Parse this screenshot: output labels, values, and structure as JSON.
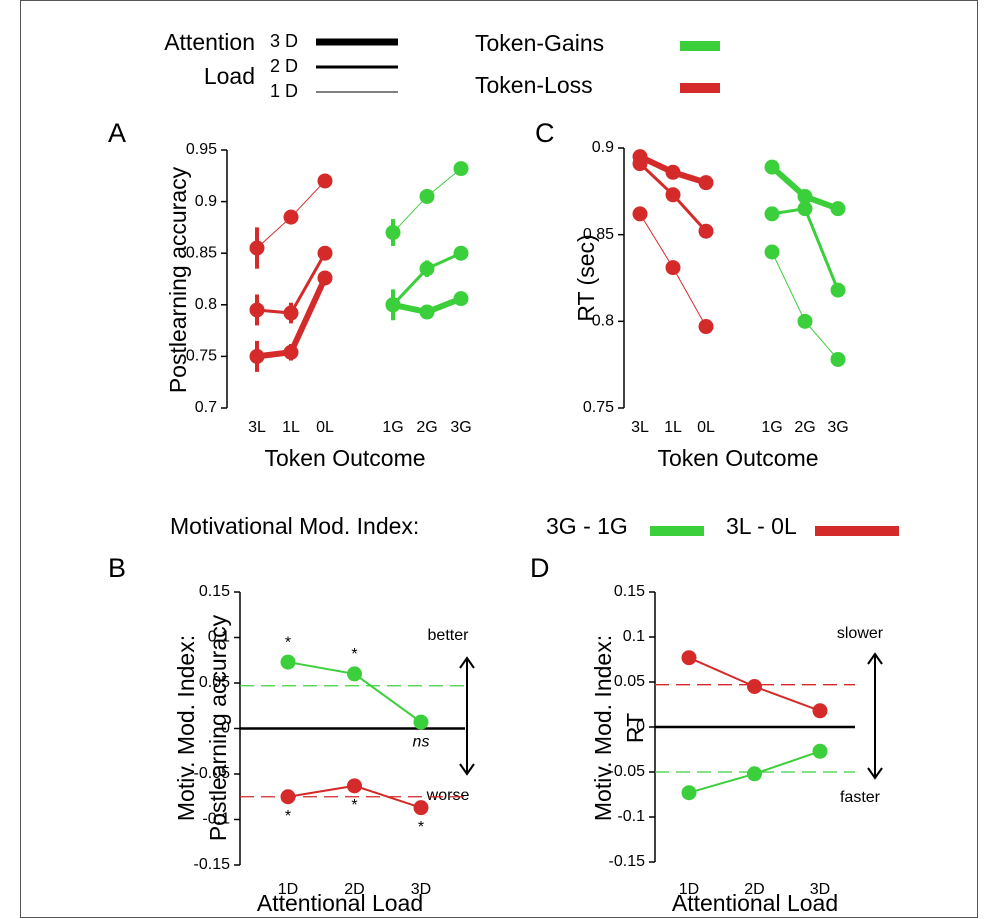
{
  "legends": {
    "load": {
      "title": [
        "Attention",
        "Load"
      ],
      "entries": [
        {
          "label": "3 D",
          "linewidth": 7
        },
        {
          "label": "2 D",
          "linewidth": 3
        },
        {
          "label": "1 D",
          "linewidth": 1
        }
      ]
    },
    "outcome": [
      {
        "label": "Token-Gains",
        "color": "#3ccf3c",
        "text_color": "#1a7a3a"
      },
      {
        "label": "Token-Loss",
        "color": "#d42a2a",
        "text_color": "#c41e6e"
      }
    ],
    "index": {
      "title": "Motivational Mod. Index:",
      "entries": [
        {
          "label": "3G - 1G",
          "color": "#3ccf3c",
          "text_color": "#1a7a3a"
        },
        {
          "label": "3L - 0L",
          "color": "#d42a2a",
          "text_color": "#c41e6e"
        }
      ]
    }
  },
  "chart_data": [
    {
      "type": "line",
      "panel": "A",
      "ylabel": [
        "Postlearning accuracy"
      ],
      "xlabel": "Token Outcome",
      "categories": [
        "3L",
        "1L",
        "0L",
        null,
        "1G",
        "2G",
        "3G"
      ],
      "ylim": [
        0.7,
        0.95
      ],
      "yticks": [
        0.7,
        0.75,
        0.8,
        0.85,
        0.9,
        0.95
      ],
      "series": [
        {
          "color": "#d42a2a",
          "linewidth": 1,
          "values": [
            0.855,
            0.885,
            0.92,
            null,
            null,
            null,
            null
          ],
          "errors": [
            0.02,
            0.007,
            0.003,
            null,
            null,
            null,
            null
          ]
        },
        {
          "color": "#d42a2a",
          "linewidth": 3,
          "values": [
            0.795,
            0.792,
            0.85,
            null,
            null,
            null,
            null
          ],
          "errors": [
            0.015,
            0.01,
            0.005,
            null,
            null,
            null,
            null
          ]
        },
        {
          "color": "#d42a2a",
          "linewidth": 6,
          "values": [
            0.75,
            0.754,
            0.826,
            null,
            null,
            null,
            null
          ],
          "errors": [
            0.015,
            0.008,
            0.005,
            null,
            null,
            null,
            null
          ]
        },
        {
          "color": "#3ccf3c",
          "linewidth": 1,
          "values": [
            null,
            null,
            null,
            null,
            0.87,
            0.905,
            0.932
          ],
          "errors": [
            null,
            null,
            null,
            null,
            0.013,
            0.004,
            0.003
          ]
        },
        {
          "color": "#3ccf3c",
          "linewidth": 3,
          "values": [
            null,
            null,
            null,
            null,
            0.8,
            0.835,
            0.85
          ],
          "errors": [
            null,
            null,
            null,
            null,
            0.015,
            0.008,
            0.007
          ]
        },
        {
          "color": "#3ccf3c",
          "linewidth": 6,
          "values": [
            null,
            null,
            null,
            null,
            0.8,
            0.793,
            0.806
          ],
          "errors": [
            null,
            null,
            null,
            null,
            0.012,
            0.006,
            0.006
          ]
        }
      ]
    },
    {
      "type": "line",
      "panel": "C",
      "ylabel": [
        "RT (sec)"
      ],
      "xlabel": "Token Outcome",
      "categories": [
        "3L",
        "1L",
        "0L",
        null,
        "1G",
        "2G",
        "3G"
      ],
      "ylim": [
        0.75,
        0.9
      ],
      "yticks": [
        0.75,
        0.8,
        0.85,
        0.9
      ],
      "series": [
        {
          "color": "#d42a2a",
          "linewidth": 1,
          "values": [
            0.862,
            0.831,
            0.797,
            null,
            null,
            null,
            null
          ]
        },
        {
          "color": "#d42a2a",
          "linewidth": 3,
          "values": [
            0.891,
            0.873,
            0.852,
            null,
            null,
            null,
            null
          ]
        },
        {
          "color": "#d42a2a",
          "linewidth": 6,
          "values": [
            0.895,
            0.886,
            0.88,
            null,
            null,
            null,
            null
          ]
        },
        {
          "color": "#3ccf3c",
          "linewidth": 1,
          "values": [
            null,
            null,
            null,
            null,
            0.84,
            0.8,
            0.778
          ]
        },
        {
          "color": "#3ccf3c",
          "linewidth": 3,
          "values": [
            null,
            null,
            null,
            null,
            0.862,
            0.865,
            0.818
          ]
        },
        {
          "color": "#3ccf3c",
          "linewidth": 6,
          "values": [
            null,
            null,
            null,
            null,
            0.889,
            0.872,
            0.865
          ]
        }
      ]
    },
    {
      "type": "line",
      "panel": "B",
      "ylabel": [
        "Motiv. Mod. Index:",
        "Postlearning accuracy"
      ],
      "xlabel": "Attentional Load",
      "categories": [
        "1D",
        "2D",
        "3D"
      ],
      "ylim": [
        -0.15,
        0.15
      ],
      "yticks": [
        -0.15,
        -0.1,
        -0.05,
        0,
        0.05,
        0.1,
        0.15
      ],
      "zero_line": true,
      "side_labels": [
        "better",
        "worse"
      ],
      "series": [
        {
          "color": "#3ccf3c",
          "linewidth": 2,
          "values": [
            0.073,
            0.06,
            0.007
          ],
          "reference": 0.047,
          "annotations": [
            "*",
            "*",
            "ns"
          ]
        },
        {
          "color": "#d42a2a",
          "linewidth": 2,
          "values": [
            -0.075,
            -0.063,
            -0.087
          ],
          "reference": -0.075,
          "annotations": [
            "*",
            "*",
            "*"
          ]
        }
      ]
    },
    {
      "type": "line",
      "panel": "D",
      "ylabel": [
        "Motiv. Mod. Index:",
        "RT"
      ],
      "xlabel": "Attentional Load",
      "categories": [
        "1D",
        "2D",
        "3D"
      ],
      "ylim": [
        -0.15,
        0.15
      ],
      "yticks": [
        -0.15,
        -0.1,
        -0.05,
        0,
        0.05,
        0.1,
        0.15
      ],
      "zero_line": true,
      "side_labels": [
        "slower",
        "faster"
      ],
      "series": [
        {
          "color": "#d42a2a",
          "linewidth": 2,
          "values": [
            0.077,
            0.045,
            0.018
          ],
          "reference": 0.047
        },
        {
          "color": "#3ccf3c",
          "linewidth": 2,
          "values": [
            -0.073,
            -0.052,
            -0.027
          ],
          "reference": -0.05
        }
      ]
    }
  ]
}
